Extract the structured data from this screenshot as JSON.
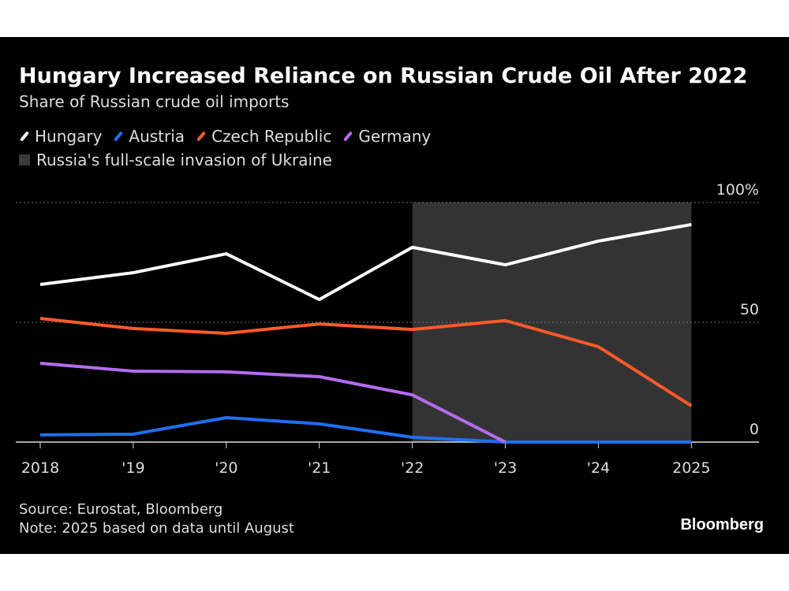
{
  "title": "Hungary Increased Reliance on Russian Crude Oil After 2022",
  "subtitle": "Share of Russian crude oil imports",
  "shade_label": "Russia's full-scale invasion of Ukraine",
  "source": "Source: Eurostat, Bloomberg",
  "note": "Note: 2025 based on data until August",
  "logo": "Bloomberg",
  "chart_data": {
    "type": "line",
    "x": [
      "2018",
      "'19",
      "'20",
      "'21",
      "'22",
      "'23",
      "'24",
      "2025"
    ],
    "ylim": [
      0,
      100
    ],
    "yticks": [
      {
        "v": 0,
        "label": "0"
      },
      {
        "v": 50,
        "label": "50"
      },
      {
        "v": 100,
        "label": "100%"
      }
    ],
    "shaded_range": [
      "'22",
      "2025"
    ],
    "shade_color": "#333333",
    "grid": "dotted horizontal",
    "legend": "top-left",
    "series": [
      {
        "name": "Hungary",
        "color": "#ffffff",
        "values": [
          65.8,
          70.7,
          78.6,
          59.5,
          81.3,
          74,
          83.9,
          90.8
        ]
      },
      {
        "name": "Austria",
        "color": "#1f6ff0",
        "values": [
          3,
          3.3,
          10.2,
          7.6,
          2,
          0,
          0,
          0
        ]
      },
      {
        "name": "Czech Republic",
        "color": "#ff5a2a",
        "values": [
          51.6,
          47.4,
          45.4,
          49.3,
          47,
          50.7,
          39.8,
          15.1
        ]
      },
      {
        "name": "Germany",
        "color": "#b46cf0",
        "values": [
          32.9,
          29.6,
          29.3,
          27.3,
          19.7,
          0,
          null,
          null
        ]
      }
    ]
  }
}
